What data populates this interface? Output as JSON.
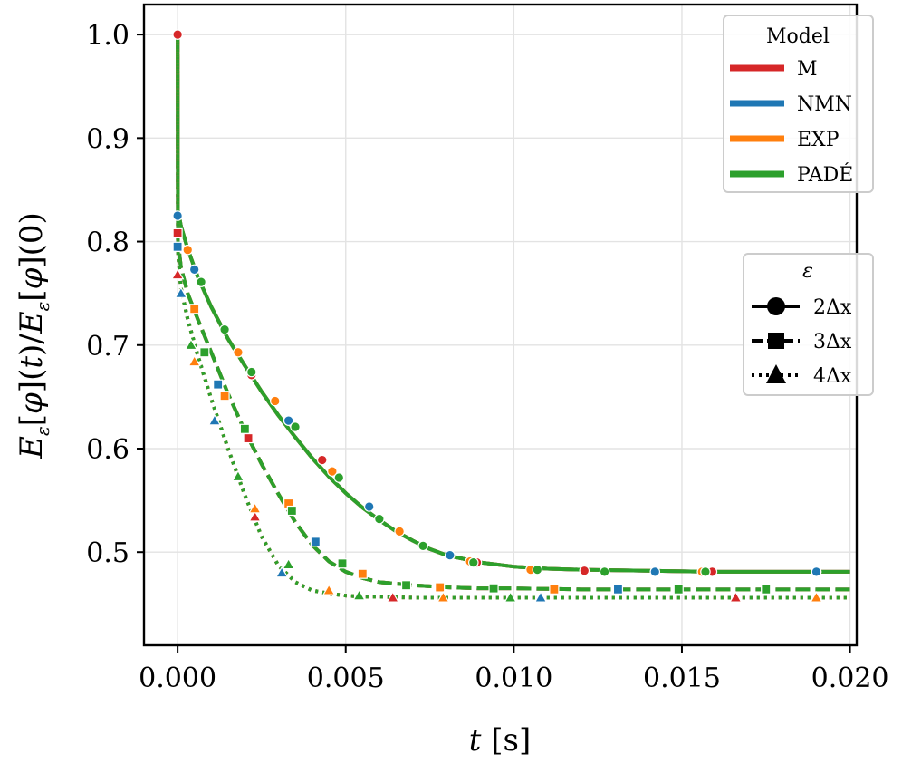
{
  "chart_data": {
    "type": "line",
    "title": "",
    "xlabel": "t [s]",
    "ylabel": "E_ε[φ](t) / E_ε[φ](0)",
    "xlim": [
      -0.001,
      0.0202
    ],
    "ylim": [
      0.41,
      1.029
    ],
    "xticks": [
      0.0,
      0.005,
      0.01,
      0.015,
      0.02
    ],
    "xtick_labels": [
      "0.000",
      "0.005",
      "0.010",
      "0.015",
      "0.020"
    ],
    "yticks": [
      0.5,
      0.6,
      0.7,
      0.8,
      0.9,
      1.0
    ],
    "ytick_labels": [
      "0.5",
      "0.6",
      "0.7",
      "0.8",
      "0.9",
      "1.0"
    ],
    "grid": true,
    "colors": {
      "M": "#d62728",
      "NMN": "#1f77b4",
      "EXP": "#ff7f0e",
      "PADÉ": "#2ca02c"
    },
    "legend_model": {
      "title": "Model",
      "position": "top-right",
      "entries": [
        "M",
        "NMN",
        "EXP",
        "PADÉ"
      ]
    },
    "legend_eps": {
      "title": "ε",
      "position": "right",
      "entries": [
        {
          "label": "2Δx",
          "marker": "circle",
          "linestyle": "solid"
        },
        {
          "label": "3Δx",
          "marker": "square",
          "linestyle": "dashed"
        },
        {
          "label": "4Δx",
          "marker": "triangle",
          "linestyle": "dotted"
        }
      ]
    },
    "series": [
      {
        "epsilon": "2Δx",
        "marker": "circle",
        "linestyle": "solid",
        "x": [
          0.0,
          1e-05,
          0.0001,
          0.0003,
          0.0006,
          0.001,
          0.0015,
          0.002,
          0.0025,
          0.003,
          0.0035,
          0.004,
          0.0045,
          0.005,
          0.0055,
          0.006,
          0.0065,
          0.007,
          0.0075,
          0.008,
          0.009,
          0.01,
          0.011,
          0.012,
          0.014,
          0.016,
          0.018,
          0.02
        ],
        "y": [
          1.0,
          0.83,
          0.815,
          0.793,
          0.766,
          0.737,
          0.706,
          0.68,
          0.655,
          0.632,
          0.611,
          0.591,
          0.573,
          0.557,
          0.543,
          0.531,
          0.52,
          0.511,
          0.503,
          0.497,
          0.49,
          0.486,
          0.484,
          0.483,
          0.482,
          0.481,
          0.481,
          0.481
        ],
        "markers": {
          "M": [
            [
              0.0,
              1.0
            ],
            [
              0.0022,
              0.671
            ],
            [
              0.0043,
              0.589
            ],
            [
              0.0089,
              0.49
            ],
            [
              0.0121,
              0.482
            ],
            [
              0.0159,
              0.481
            ],
            [
              0.019,
              0.481
            ]
          ],
          "NMN": [
            [
              0.0,
              0.825
            ],
            [
              0.0005,
              0.773
            ],
            [
              0.0033,
              0.627
            ],
            [
              0.0057,
              0.544
            ],
            [
              0.0081,
              0.497
            ],
            [
              0.0142,
              0.481
            ],
            [
              0.019,
              0.481
            ]
          ],
          "EXP": [
            [
              0.0003,
              0.792
            ],
            [
              0.0018,
              0.693
            ],
            [
              0.0029,
              0.646
            ],
            [
              0.0046,
              0.578
            ],
            [
              0.0066,
              0.52
            ],
            [
              0.0087,
              0.491
            ],
            [
              0.0105,
              0.483
            ],
            [
              0.0156,
              0.481
            ]
          ],
          "PADÉ": [
            [
              0.0007,
              0.761
            ],
            [
              0.0014,
              0.715
            ],
            [
              0.0022,
              0.674
            ],
            [
              0.0035,
              0.621
            ],
            [
              0.0048,
              0.572
            ],
            [
              0.006,
              0.532
            ],
            [
              0.0073,
              0.506
            ],
            [
              0.0088,
              0.49
            ],
            [
              0.0107,
              0.483
            ],
            [
              0.0127,
              0.481
            ],
            [
              0.0157,
              0.481
            ]
          ]
        }
      },
      {
        "epsilon": "3Δx",
        "marker": "square",
        "linestyle": "dashed",
        "x": [
          0.0,
          1e-05,
          0.0001,
          0.0003,
          0.0006,
          0.001,
          0.0015,
          0.002,
          0.0025,
          0.003,
          0.0035,
          0.004,
          0.0045,
          0.005,
          0.0055,
          0.006,
          0.007,
          0.008,
          0.009,
          0.01,
          0.012,
          0.015,
          0.02
        ],
        "y": [
          1.0,
          0.8,
          0.775,
          0.75,
          0.725,
          0.693,
          0.653,
          0.617,
          0.585,
          0.556,
          0.529,
          0.507,
          0.491,
          0.481,
          0.475,
          0.471,
          0.468,
          0.466,
          0.465,
          0.465,
          0.464,
          0.464,
          0.464
        ],
        "markers": {
          "M": [
            [
              0.0,
              0.808
            ],
            [
              0.0021,
              0.61
            ],
            [
              0.0175,
              0.464
            ]
          ],
          "NMN": [
            [
              0.0,
              0.795
            ],
            [
              0.0012,
              0.662
            ],
            [
              0.0041,
              0.51
            ],
            [
              0.0131,
              0.464
            ]
          ],
          "EXP": [
            [
              0.0005,
              0.735
            ],
            [
              0.0014,
              0.651
            ],
            [
              0.0033,
              0.547
            ],
            [
              0.0055,
              0.479
            ],
            [
              0.0078,
              0.466
            ],
            [
              0.0112,
              0.464
            ]
          ],
          "PADÉ": [
            [
              0.0008,
              0.693
            ],
            [
              0.002,
              0.619
            ],
            [
              0.0034,
              0.54
            ],
            [
              0.0049,
              0.489
            ],
            [
              0.0068,
              0.468
            ],
            [
              0.0094,
              0.465
            ],
            [
              0.0149,
              0.464
            ],
            [
              0.0175,
              0.464
            ]
          ]
        }
      },
      {
        "epsilon": "4Δx",
        "marker": "triangle",
        "linestyle": "dotted",
        "x": [
          0.0,
          1e-05,
          0.0001,
          0.0003,
          0.0006,
          0.001,
          0.0015,
          0.002,
          0.0025,
          0.003,
          0.0035,
          0.004,
          0.0045,
          0.005,
          0.0055,
          0.006,
          0.007,
          0.008,
          0.01,
          0.015,
          0.02
        ],
        "y": [
          1.0,
          0.79,
          0.755,
          0.725,
          0.69,
          0.648,
          0.6,
          0.555,
          0.515,
          0.487,
          0.471,
          0.463,
          0.46,
          0.458,
          0.457,
          0.457,
          0.456,
          0.456,
          0.456,
          0.456,
          0.456
        ],
        "markers": {
          "M": [
            [
              0.0,
              0.768
            ],
            [
              0.0023,
              0.534
            ],
            [
              0.0064,
              0.456
            ],
            [
              0.0166,
              0.456
            ]
          ],
          "NMN": [
            [
              0.0001,
              0.75
            ],
            [
              0.0011,
              0.627
            ],
            [
              0.0031,
              0.48
            ],
            [
              0.0108,
              0.456
            ]
          ],
          "EXP": [
            [
              0.0005,
              0.684
            ],
            [
              0.0023,
              0.542
            ],
            [
              0.0045,
              0.463
            ],
            [
              0.0079,
              0.456
            ],
            [
              0.019,
              0.456
            ]
          ],
          "PADÉ": [
            [
              0.0004,
              0.7
            ],
            [
              0.0018,
              0.573
            ],
            [
              0.0033,
              0.488
            ],
            [
              0.0054,
              0.458
            ],
            [
              0.0099,
              0.456
            ]
          ]
        }
      }
    ]
  }
}
